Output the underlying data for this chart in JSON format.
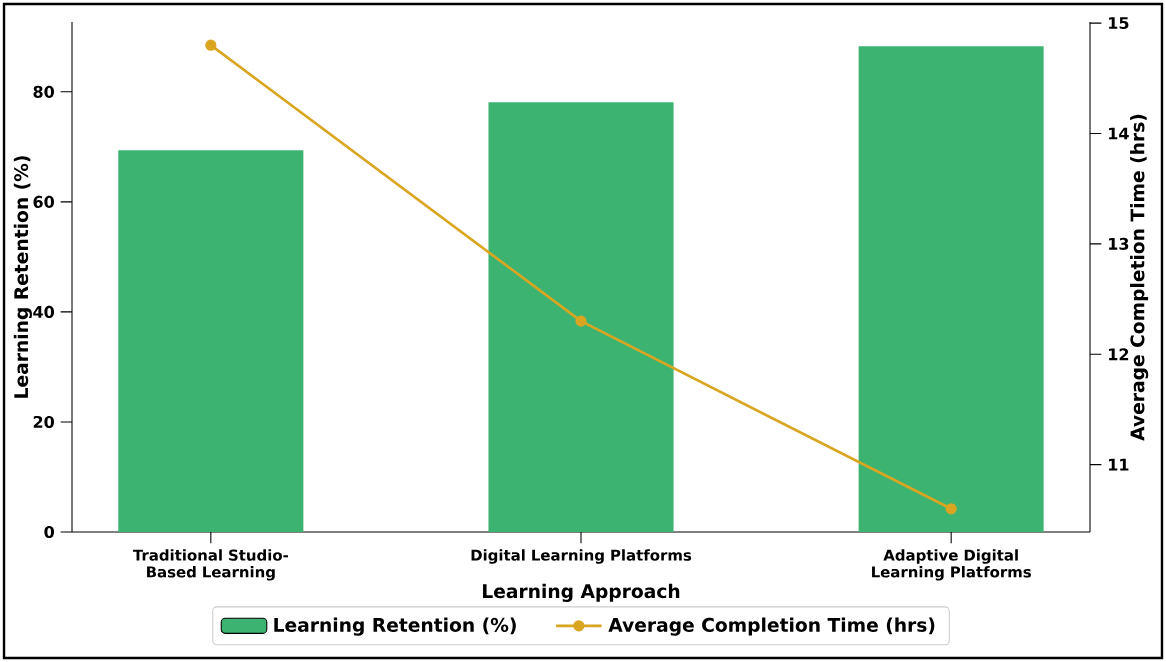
{
  "chart_data": {
    "type": "bar",
    "categories": [
      "Traditional Studio-Based Learning",
      "Digital Learning Platforms",
      "Adaptive Digital Learning Platforms"
    ],
    "xlabel": "Learning Approach",
    "ylabel": "Learning Retention (%)",
    "y2label": "Average Completion Time (hrs)",
    "series": [
      {
        "name": "Learning Retention (%)",
        "color": "#3cb371",
        "values": [
          69.4,
          78.1,
          88.3
        ]
      },
      {
        "name": "Average Completion Time (hrs)",
        "type": "line",
        "axis": "y2",
        "color": "#daa520",
        "marker": "circle",
        "values": [
          14.8,
          12.3,
          10.6
        ]
      }
    ],
    "ylim": [
      0,
      92.7
    ],
    "yticks": [
      0,
      20,
      40,
      60,
      80
    ],
    "y2lim": [
      10.39,
      15.01
    ],
    "y2ticks": [
      11,
      12,
      13,
      14,
      15
    ],
    "grid": false,
    "legend": "bottom"
  }
}
